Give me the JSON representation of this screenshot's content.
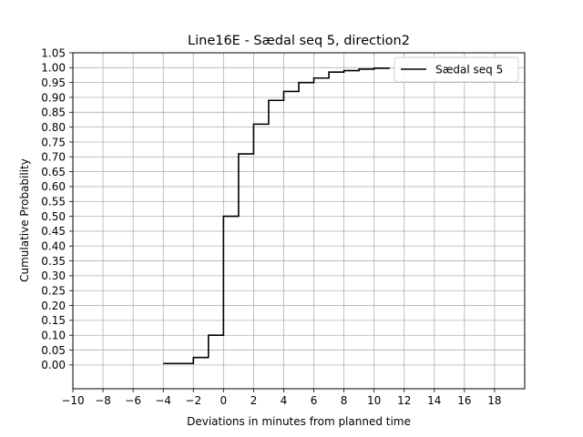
{
  "chart_data": {
    "type": "line",
    "title": "Line16E - Sædal seq 5, direction2",
    "xlabel": "Deviations in minutes from planned time",
    "ylabel": "Cumulative Probability",
    "xlim": [
      -10,
      20
    ],
    "ylim": [
      -0.08,
      1.05
    ],
    "x_ticks": [
      -10,
      -8,
      -6,
      -4,
      -2,
      0,
      2,
      4,
      6,
      8,
      10,
      12,
      14,
      16,
      18
    ],
    "x_tick_labels": [
      "−10",
      "−8",
      "−6",
      "−4",
      "−2",
      "0",
      "2",
      "4",
      "6",
      "8",
      "10",
      "12",
      "14",
      "16",
      "18"
    ],
    "y_ticks": [
      0.0,
      0.05,
      0.1,
      0.15,
      0.2,
      0.25,
      0.3,
      0.35,
      0.4,
      0.45,
      0.5,
      0.55,
      0.6,
      0.65,
      0.7,
      0.75,
      0.8,
      0.85,
      0.9,
      0.95,
      1.0,
      1.05
    ],
    "y_tick_labels": [
      "0.00",
      "0.05",
      "0.10",
      "0.15",
      "0.20",
      "0.25",
      "0.30",
      "0.35",
      "0.40",
      "0.45",
      "0.50",
      "0.55",
      "0.60",
      "0.65",
      "0.70",
      "0.75",
      "0.80",
      "0.85",
      "0.90",
      "0.95",
      "1.00",
      "1.05"
    ],
    "grid": true,
    "legend_position": "top-right",
    "series": [
      {
        "name": "Sædal seq 5",
        "color": "#000000",
        "step": "post",
        "x": [
          -4,
          -2,
          -1,
          0,
          1,
          2,
          3,
          4,
          5,
          6,
          7,
          8,
          9,
          10,
          11
        ],
        "y": [
          0.005,
          0.025,
          0.1,
          0.5,
          0.71,
          0.81,
          0.89,
          0.92,
          0.95,
          0.965,
          0.985,
          0.99,
          0.995,
          0.998,
          1.0
        ]
      }
    ]
  }
}
